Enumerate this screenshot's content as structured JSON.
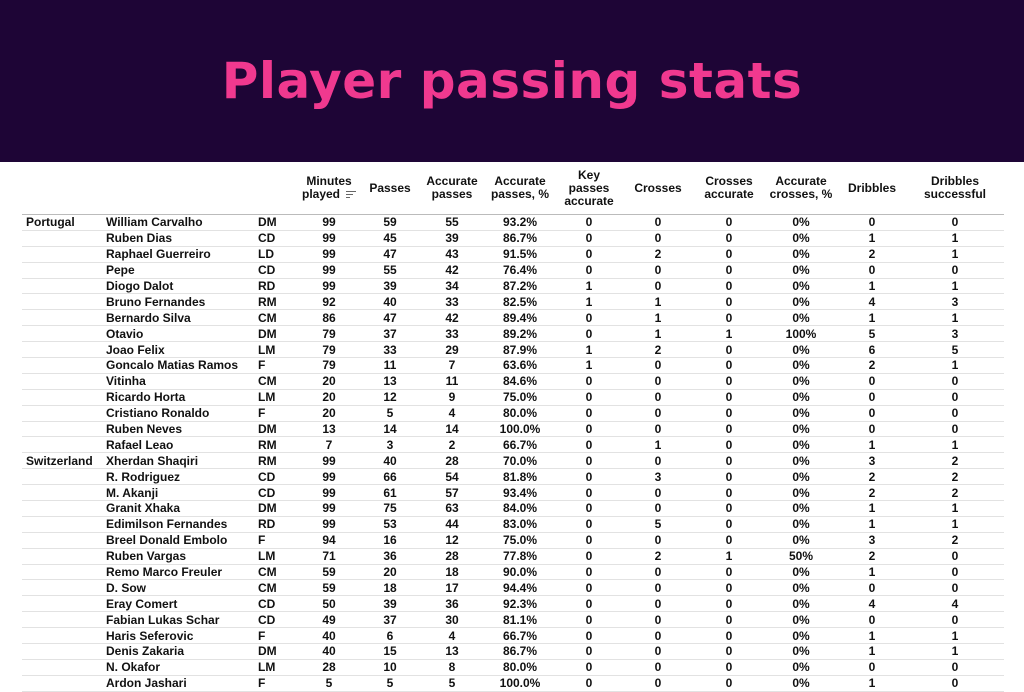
{
  "banner": {
    "title": "Player passing stats"
  },
  "colors": {
    "banner_bg": "#1e0536",
    "title": "#f0398f"
  },
  "table": {
    "headers": {
      "minutes": "Minutes played",
      "passes": "Passes",
      "accurate_passes": "Accurate passes",
      "accurate_passes_pct": "Accurate passes, %",
      "key_passes": "Key passes accurate",
      "crosses": "Crosses",
      "crosses_accurate": "Crosses accurate",
      "accurate_crosses_pct": "Accurate crosses, %",
      "dribbles": "Dribbles",
      "dribbles_successful": "Dribbles successful"
    },
    "sort_icon": "sort-descending-icon",
    "rows": [
      {
        "team": "Portugal",
        "player": "William Carvalho",
        "pos": "DM",
        "min": "99",
        "passes": "59",
        "acc": "55",
        "accp": "93.2%",
        "key": "0",
        "cr": "0",
        "cra": "0",
        "crp": "0%",
        "dr": "0",
        "drs": "0"
      },
      {
        "team": "",
        "player": "Ruben Dias",
        "pos": "CD",
        "min": "99",
        "passes": "45",
        "acc": "39",
        "accp": "86.7%",
        "key": "0",
        "cr": "0",
        "cra": "0",
        "crp": "0%",
        "dr": "1",
        "drs": "1"
      },
      {
        "team": "",
        "player": "Raphael Guerreiro",
        "pos": "LD",
        "min": "99",
        "passes": "47",
        "acc": "43",
        "accp": "91.5%",
        "key": "0",
        "cr": "2",
        "cra": "0",
        "crp": "0%",
        "dr": "2",
        "drs": "1"
      },
      {
        "team": "",
        "player": "Pepe",
        "pos": "CD",
        "min": "99",
        "passes": "55",
        "acc": "42",
        "accp": "76.4%",
        "key": "0",
        "cr": "0",
        "cra": "0",
        "crp": "0%",
        "dr": "0",
        "drs": "0"
      },
      {
        "team": "",
        "player": "Diogo Dalot",
        "pos": "RD",
        "min": "99",
        "passes": "39",
        "acc": "34",
        "accp": "87.2%",
        "key": "1",
        "cr": "0",
        "cra": "0",
        "crp": "0%",
        "dr": "1",
        "drs": "1"
      },
      {
        "team": "",
        "player": "Bruno Fernandes",
        "pos": "RM",
        "min": "92",
        "passes": "40",
        "acc": "33",
        "accp": "82.5%",
        "key": "1",
        "cr": "1",
        "cra": "0",
        "crp": "0%",
        "dr": "4",
        "drs": "3"
      },
      {
        "team": "",
        "player": "Bernardo Silva",
        "pos": "CM",
        "min": "86",
        "passes": "47",
        "acc": "42",
        "accp": "89.4%",
        "key": "0",
        "cr": "1",
        "cra": "0",
        "crp": "0%",
        "dr": "1",
        "drs": "1"
      },
      {
        "team": "",
        "player": "Otavio",
        "pos": "DM",
        "min": "79",
        "passes": "37",
        "acc": "33",
        "accp": "89.2%",
        "key": "0",
        "cr": "1",
        "cra": "1",
        "crp": "100%",
        "dr": "5",
        "drs": "3"
      },
      {
        "team": "",
        "player": "Joao Felix",
        "pos": "LM",
        "min": "79",
        "passes": "33",
        "acc": "29",
        "accp": "87.9%",
        "key": "1",
        "cr": "2",
        "cra": "0",
        "crp": "0%",
        "dr": "6",
        "drs": "5"
      },
      {
        "team": "",
        "player": "Goncalo Matias Ramos",
        "pos": "F",
        "min": "79",
        "passes": "11",
        "acc": "7",
        "accp": "63.6%",
        "key": "1",
        "cr": "0",
        "cra": "0",
        "crp": "0%",
        "dr": "2",
        "drs": "1"
      },
      {
        "team": "",
        "player": "Vitinha",
        "pos": "CM",
        "min": "20",
        "passes": "13",
        "acc": "11",
        "accp": "84.6%",
        "key": "0",
        "cr": "0",
        "cra": "0",
        "crp": "0%",
        "dr": "0",
        "drs": "0"
      },
      {
        "team": "",
        "player": "Ricardo Horta",
        "pos": "LM",
        "min": "20",
        "passes": "12",
        "acc": "9",
        "accp": "75.0%",
        "key": "0",
        "cr": "0",
        "cra": "0",
        "crp": "0%",
        "dr": "0",
        "drs": "0"
      },
      {
        "team": "",
        "player": "Cristiano Ronaldo",
        "pos": "F",
        "min": "20",
        "passes": "5",
        "acc": "4",
        "accp": "80.0%",
        "key": "0",
        "cr": "0",
        "cra": "0",
        "crp": "0%",
        "dr": "0",
        "drs": "0"
      },
      {
        "team": "",
        "player": "Ruben Neves",
        "pos": "DM",
        "min": "13",
        "passes": "14",
        "acc": "14",
        "accp": "100.0%",
        "key": "0",
        "cr": "0",
        "cra": "0",
        "crp": "0%",
        "dr": "0",
        "drs": "0"
      },
      {
        "team": "",
        "player": "Rafael Leao",
        "pos": "RM",
        "min": "7",
        "passes": "3",
        "acc": "2",
        "accp": "66.7%",
        "key": "0",
        "cr": "1",
        "cra": "0",
        "crp": "0%",
        "dr": "1",
        "drs": "1"
      },
      {
        "team": "Switzerland",
        "player": "Xherdan Shaqiri",
        "pos": "RM",
        "min": "99",
        "passes": "40",
        "acc": "28",
        "accp": "70.0%",
        "key": "0",
        "cr": "0",
        "cra": "0",
        "crp": "0%",
        "dr": "3",
        "drs": "2"
      },
      {
        "team": "",
        "player": "R. Rodriguez",
        "pos": "CD",
        "min": "99",
        "passes": "66",
        "acc": "54",
        "accp": "81.8%",
        "key": "0",
        "cr": "3",
        "cra": "0",
        "crp": "0%",
        "dr": "2",
        "drs": "2"
      },
      {
        "team": "",
        "player": "M. Akanji",
        "pos": "CD",
        "min": "99",
        "passes": "61",
        "acc": "57",
        "accp": "93.4%",
        "key": "0",
        "cr": "0",
        "cra": "0",
        "crp": "0%",
        "dr": "2",
        "drs": "2"
      },
      {
        "team": "",
        "player": "Granit Xhaka",
        "pos": "DM",
        "min": "99",
        "passes": "75",
        "acc": "63",
        "accp": "84.0%",
        "key": "0",
        "cr": "0",
        "cra": "0",
        "crp": "0%",
        "dr": "1",
        "drs": "1"
      },
      {
        "team": "",
        "player": "Edimilson Fernandes",
        "pos": "RD",
        "min": "99",
        "passes": "53",
        "acc": "44",
        "accp": "83.0%",
        "key": "0",
        "cr": "5",
        "cra": "0",
        "crp": "0%",
        "dr": "1",
        "drs": "1"
      },
      {
        "team": "",
        "player": "Breel Donald Embolo",
        "pos": "F",
        "min": "94",
        "passes": "16",
        "acc": "12",
        "accp": "75.0%",
        "key": "0",
        "cr": "0",
        "cra": "0",
        "crp": "0%",
        "dr": "3",
        "drs": "2"
      },
      {
        "team": "",
        "player": "Ruben Vargas",
        "pos": "LM",
        "min": "71",
        "passes": "36",
        "acc": "28",
        "accp": "77.8%",
        "key": "0",
        "cr": "2",
        "cra": "1",
        "crp": "50%",
        "dr": "2",
        "drs": "0"
      },
      {
        "team": "",
        "player": "Remo Marco Freuler",
        "pos": "CM",
        "min": "59",
        "passes": "20",
        "acc": "18",
        "accp": "90.0%",
        "key": "0",
        "cr": "0",
        "cra": "0",
        "crp": "0%",
        "dr": "1",
        "drs": "0"
      },
      {
        "team": "",
        "player": "D. Sow",
        "pos": "CM",
        "min": "59",
        "passes": "18",
        "acc": "17",
        "accp": "94.4%",
        "key": "0",
        "cr": "0",
        "cra": "0",
        "crp": "0%",
        "dr": "0",
        "drs": "0"
      },
      {
        "team": "",
        "player": "Eray Comert",
        "pos": "CD",
        "min": "50",
        "passes": "39",
        "acc": "36",
        "accp": "92.3%",
        "key": "0",
        "cr": "0",
        "cra": "0",
        "crp": "0%",
        "dr": "4",
        "drs": "4"
      },
      {
        "team": "",
        "player": "Fabian Lukas Schar",
        "pos": "CD",
        "min": "49",
        "passes": "37",
        "acc": "30",
        "accp": "81.1%",
        "key": "0",
        "cr": "0",
        "cra": "0",
        "crp": "0%",
        "dr": "0",
        "drs": "0"
      },
      {
        "team": "",
        "player": "Haris Seferovic",
        "pos": "F",
        "min": "40",
        "passes": "6",
        "acc": "4",
        "accp": "66.7%",
        "key": "0",
        "cr": "0",
        "cra": "0",
        "crp": "0%",
        "dr": "1",
        "drs": "1"
      },
      {
        "team": "",
        "player": "Denis Zakaria",
        "pos": "DM",
        "min": "40",
        "passes": "15",
        "acc": "13",
        "accp": "86.7%",
        "key": "0",
        "cr": "0",
        "cra": "0",
        "crp": "0%",
        "dr": "1",
        "drs": "1"
      },
      {
        "team": "",
        "player": "N. Okafor",
        "pos": "LM",
        "min": "28",
        "passes": "10",
        "acc": "8",
        "accp": "80.0%",
        "key": "0",
        "cr": "0",
        "cra": "0",
        "crp": "0%",
        "dr": "0",
        "drs": "0"
      },
      {
        "team": "",
        "player": "Ardon Jashari",
        "pos": "F",
        "min": "5",
        "passes": "5",
        "acc": "5",
        "accp": "100.0%",
        "key": "0",
        "cr": "0",
        "cra": "0",
        "crp": "0%",
        "dr": "1",
        "drs": "0"
      }
    ]
  }
}
